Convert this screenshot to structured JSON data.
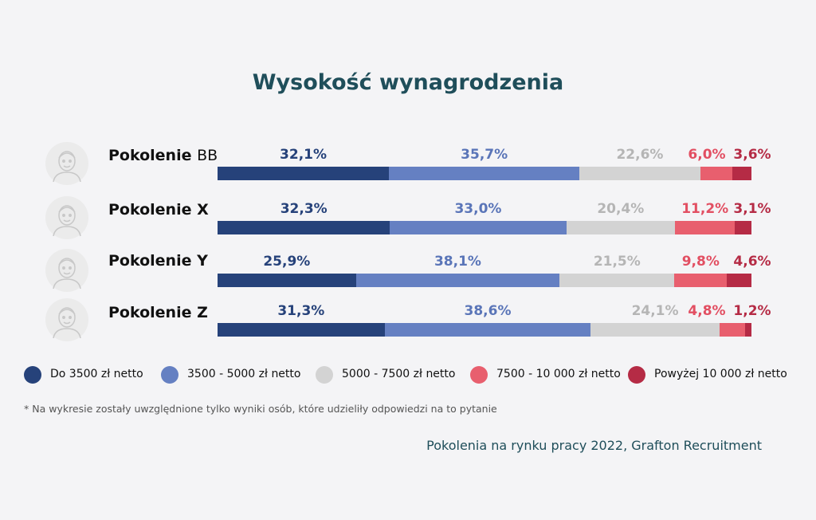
{
  "title": "Wysokość wynagrodzenia",
  "colors": [
    "#26427a",
    "#6580c2",
    "#d3d3d3",
    "#e85f6e",
    "#b52b45"
  ],
  "label_colors": [
    "#26427a",
    "#5a75b8",
    "#b5b5b5",
    "#e24f62",
    "#b52b45"
  ],
  "legend": [
    {
      "label": "Do 3500 zł netto"
    },
    {
      "label": "3500 - 5000 zł netto"
    },
    {
      "label": "5000 - 7500 zł netto"
    },
    {
      "label": "7500 - 10 000 zł netto"
    },
    {
      "label": "Powyżej 10 000 zł netto"
    }
  ],
  "footnote": "* Na wykresie zostały uwzględnione tylko wyniki osób, które udzieliły odpowiedzi na to pytanie",
  "source": "Pokolenia na rynku pracy 2022, Grafton Recruitment",
  "chart_data": {
    "type": "bar",
    "stacked": true,
    "orientation": "horizontal",
    "title": "Wysokość wynagrodzenia",
    "categories": [
      "Pokolenie BB",
      "Pokolenie X",
      "Pokolenie Y",
      "Pokolenie Z"
    ],
    "series": [
      {
        "name": "Do 3500 zł netto",
        "values": [
          32.1,
          32.3,
          25.9,
          31.3
        ],
        "labels": [
          "32,1%",
          "32,3%",
          "25,9%",
          "31,3%"
        ]
      },
      {
        "name": "3500 - 5000 zł netto",
        "values": [
          35.7,
          33.0,
          38.1,
          38.6
        ],
        "labels": [
          "35,7%",
          "33,0%",
          "38,1%",
          "38,6%"
        ]
      },
      {
        "name": "5000 - 7500 zł netto",
        "values": [
          22.6,
          20.4,
          21.5,
          24.1
        ],
        "labels": [
          "22,6%",
          "20,4%",
          "21,5%",
          "24,1%"
        ]
      },
      {
        "name": "7500 - 10 000 zł netto",
        "values": [
          6.0,
          11.2,
          9.8,
          4.8
        ],
        "labels": [
          "6,0%",
          "11,2%",
          "9,8%",
          "4,8%"
        ]
      },
      {
        "name": "Powyżej 10 000 zł netto",
        "values": [
          3.6,
          3.1,
          4.6,
          1.2
        ],
        "labels": [
          "3,6%",
          "3,1%",
          "4,6%",
          "1,2%"
        ]
      }
    ],
    "legend_position": "bottom"
  }
}
